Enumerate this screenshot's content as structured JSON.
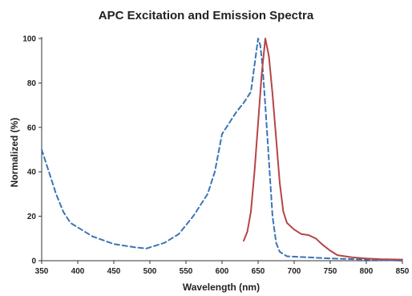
{
  "chart_data": {
    "type": "line",
    "title": "APC Excitation and Emission Spectra",
    "xlabel": "Wavelength (nm)",
    "ylabel": "Normalized (%)",
    "xlim": [
      350,
      850
    ],
    "ylim": [
      0,
      100
    ],
    "x_ticks": [
      350,
      400,
      450,
      500,
      550,
      600,
      650,
      700,
      750,
      800,
      850
    ],
    "y_ticks": [
      0,
      20,
      40,
      60,
      80,
      100
    ],
    "grid": false,
    "legend": "none",
    "series": [
      {
        "style": "dashed",
        "color": "#3b74b8",
        "points": [
          [
            350,
            50
          ],
          [
            360,
            40
          ],
          [
            370,
            30
          ],
          [
            380,
            22
          ],
          [
            390,
            17
          ],
          [
            400,
            15
          ],
          [
            420,
            11
          ],
          [
            450,
            7.5
          ],
          [
            480,
            6
          ],
          [
            495,
            5.5
          ],
          [
            500,
            6
          ],
          [
            520,
            8
          ],
          [
            540,
            12
          ],
          [
            560,
            20
          ],
          [
            580,
            30
          ],
          [
            590,
            40
          ],
          [
            600,
            57
          ],
          [
            610,
            62
          ],
          [
            620,
            67
          ],
          [
            630,
            71
          ],
          [
            640,
            76
          ],
          [
            645,
            88
          ],
          [
            650,
            100
          ],
          [
            653,
            97
          ],
          [
            656,
            88
          ],
          [
            660,
            70
          ],
          [
            665,
            45
          ],
          [
            670,
            20
          ],
          [
            675,
            8
          ],
          [
            680,
            4
          ],
          [
            690,
            2
          ],
          [
            720,
            1.5
          ],
          [
            750,
            1
          ],
          [
            800,
            0.5
          ],
          [
            850,
            0
          ]
        ]
      },
      {
        "style": "solid",
        "color": "#b54548",
        "points": [
          [
            630,
            9
          ],
          [
            635,
            13
          ],
          [
            640,
            22
          ],
          [
            645,
            40
          ],
          [
            650,
            62
          ],
          [
            655,
            84
          ],
          [
            660,
            100
          ],
          [
            665,
            92
          ],
          [
            670,
            75
          ],
          [
            675,
            55
          ],
          [
            680,
            35
          ],
          [
            685,
            22
          ],
          [
            690,
            17
          ],
          [
            700,
            14
          ],
          [
            710,
            12
          ],
          [
            720,
            11.5
          ],
          [
            730,
            10
          ],
          [
            740,
            7
          ],
          [
            750,
            4.5
          ],
          [
            760,
            2.5
          ],
          [
            780,
            1.5
          ],
          [
            800,
            1
          ],
          [
            820,
            0.7
          ],
          [
            850,
            0.5
          ]
        ]
      }
    ]
  }
}
